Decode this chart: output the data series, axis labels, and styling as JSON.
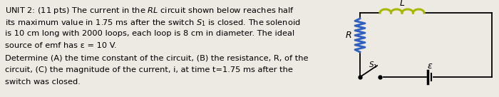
{
  "text_lines": [
    "UNIT 2: (11 pts) The current in the $RL$ circuit shown below reaches half",
    "its maximum value in 1.75 ms after the switch $S_1$ is closed. The solenoid",
    "is 10 cm long with 2000 loops, each loop is 8 cm in diameter. The ideal",
    "source of emf has ε = 10 V.",
    "Determine (A) the time constant of the circuit, (B) the resistance, R, of the",
    "circuit, (C) the magnitude of the current, i, at time t=1.75 ms after the",
    "switch was closed."
  ],
  "bg_color": "#ede9e3",
  "text_color": "#000000",
  "circuit_color": "#000000",
  "inductor_color": "#a8b800",
  "resistor_color": "#3060c0",
  "font_size": 8.2
}
